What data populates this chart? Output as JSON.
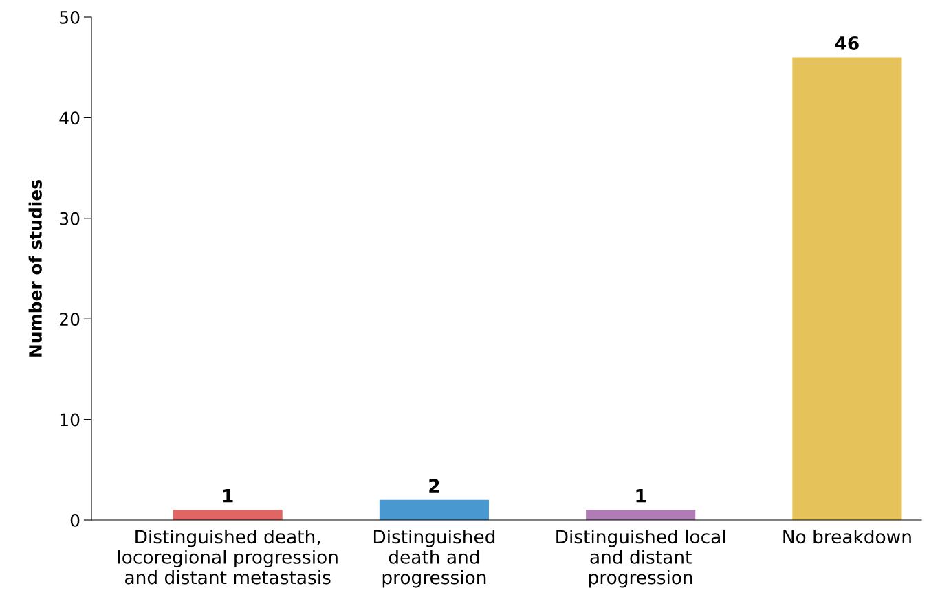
{
  "chart_data": {
    "type": "bar",
    "ylabel": "Number of studies",
    "categories": [
      "Distinguished death,\nlocoregional progression\nand distant metastasis",
      "Distinguished\ndeath and\nprogression",
      "Distinguished local\nand distant\nprogression",
      "No breakdown"
    ],
    "values": [
      1,
      2,
      1,
      46
    ],
    "colors": [
      "#e06666",
      "#4a98d0",
      "#b07cb6",
      "#e5c35a"
    ],
    "ylim": [
      0,
      50
    ],
    "yticks": [
      0,
      10,
      20,
      30,
      40,
      50
    ],
    "data_labels": true,
    "grid": false,
    "legend": false
  }
}
